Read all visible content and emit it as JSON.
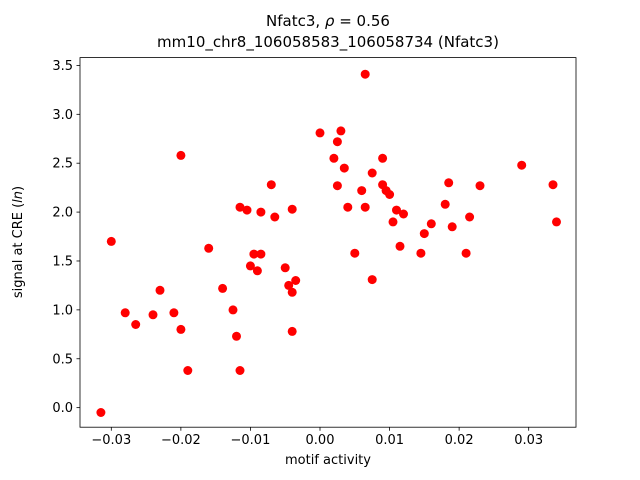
{
  "figure": {
    "background": "#ffffff"
  },
  "chart_data": {
    "type": "scatter",
    "title": "Nfatc3, ρ = 0.56",
    "title_parts": {
      "prefix": "Nfatc3, ",
      "rho": "ρ",
      "suffix": " = 0.56"
    },
    "subtitle": "mm10_chr8_106058583_106058734 (Nfatc3)",
    "xlabel": "motif activity",
    "ylabel": "signal at CRE (ln)",
    "ylabel_parts": {
      "prefix": "signal at CRE (",
      "math": "ln",
      "suffix": ")"
    },
    "marker_color": "#ff0000",
    "grid": false,
    "legend": null,
    "xlim": [
      -0.0345,
      0.0368
    ],
    "ylim": [
      -0.2,
      3.58
    ],
    "xticks": {
      "values": [
        -0.03,
        -0.02,
        -0.01,
        0.0,
        0.01,
        0.02,
        0.03
      ],
      "labels": [
        "−0.03",
        "−0.02",
        "−0.01",
        "0.00",
        "0.01",
        "0.02",
        "0.03"
      ]
    },
    "yticks": {
      "values": [
        0.0,
        0.5,
        1.0,
        1.5,
        2.0,
        2.5,
        3.0,
        3.5
      ],
      "labels": [
        "0.0",
        "0.5",
        "1.0",
        "1.5",
        "2.0",
        "2.5",
        "3.0",
        "3.5"
      ]
    },
    "points": [
      [
        -0.0315,
        -0.05
      ],
      [
        -0.03,
        1.7
      ],
      [
        -0.028,
        0.97
      ],
      [
        -0.0265,
        0.85
      ],
      [
        -0.024,
        0.95
      ],
      [
        -0.023,
        1.2
      ],
      [
        -0.021,
        0.97
      ],
      [
        -0.02,
        2.58
      ],
      [
        -0.02,
        0.8
      ],
      [
        -0.019,
        0.38
      ],
      [
        -0.016,
        1.63
      ],
      [
        -0.014,
        1.22
      ],
      [
        -0.0125,
        1.0
      ],
      [
        -0.012,
        0.73
      ],
      [
        -0.0115,
        0.38
      ],
      [
        -0.0115,
        2.05
      ],
      [
        -0.0105,
        2.02
      ],
      [
        -0.01,
        1.45
      ],
      [
        -0.0095,
        1.57
      ],
      [
        -0.0085,
        1.57
      ],
      [
        -0.009,
        1.4
      ],
      [
        -0.0085,
        2.0
      ],
      [
        -0.007,
        2.28
      ],
      [
        -0.0065,
        1.95
      ],
      [
        -0.005,
        1.43
      ],
      [
        -0.004,
        2.03
      ],
      [
        -0.0045,
        1.25
      ],
      [
        -0.0035,
        1.3
      ],
      [
        -0.004,
        0.78
      ],
      [
        -0.004,
        1.18
      ],
      [
        0.0,
        2.81
      ],
      [
        0.002,
        2.55
      ],
      [
        0.0025,
        2.72
      ],
      [
        0.003,
        2.83
      ],
      [
        0.0025,
        2.27
      ],
      [
        0.0035,
        2.45
      ],
      [
        0.004,
        2.05
      ],
      [
        0.005,
        1.58
      ],
      [
        0.0065,
        3.41
      ],
      [
        0.006,
        2.22
      ],
      [
        0.0065,
        2.05
      ],
      [
        0.0075,
        2.4
      ],
      [
        0.0075,
        1.31
      ],
      [
        0.009,
        2.55
      ],
      [
        0.009,
        2.28
      ],
      [
        0.0095,
        2.22
      ],
      [
        0.01,
        2.18
      ],
      [
        0.0105,
        1.9
      ],
      [
        0.011,
        2.02
      ],
      [
        0.0115,
        1.65
      ],
      [
        0.012,
        1.98
      ],
      [
        0.0145,
        1.58
      ],
      [
        0.015,
        1.78
      ],
      [
        0.016,
        1.88
      ],
      [
        0.018,
        2.08
      ],
      [
        0.0185,
        2.3
      ],
      [
        0.019,
        1.85
      ],
      [
        0.021,
        1.58
      ],
      [
        0.0215,
        1.95
      ],
      [
        0.023,
        2.27
      ],
      [
        0.029,
        2.48
      ],
      [
        0.0335,
        2.28
      ],
      [
        0.034,
        1.9
      ]
    ]
  }
}
